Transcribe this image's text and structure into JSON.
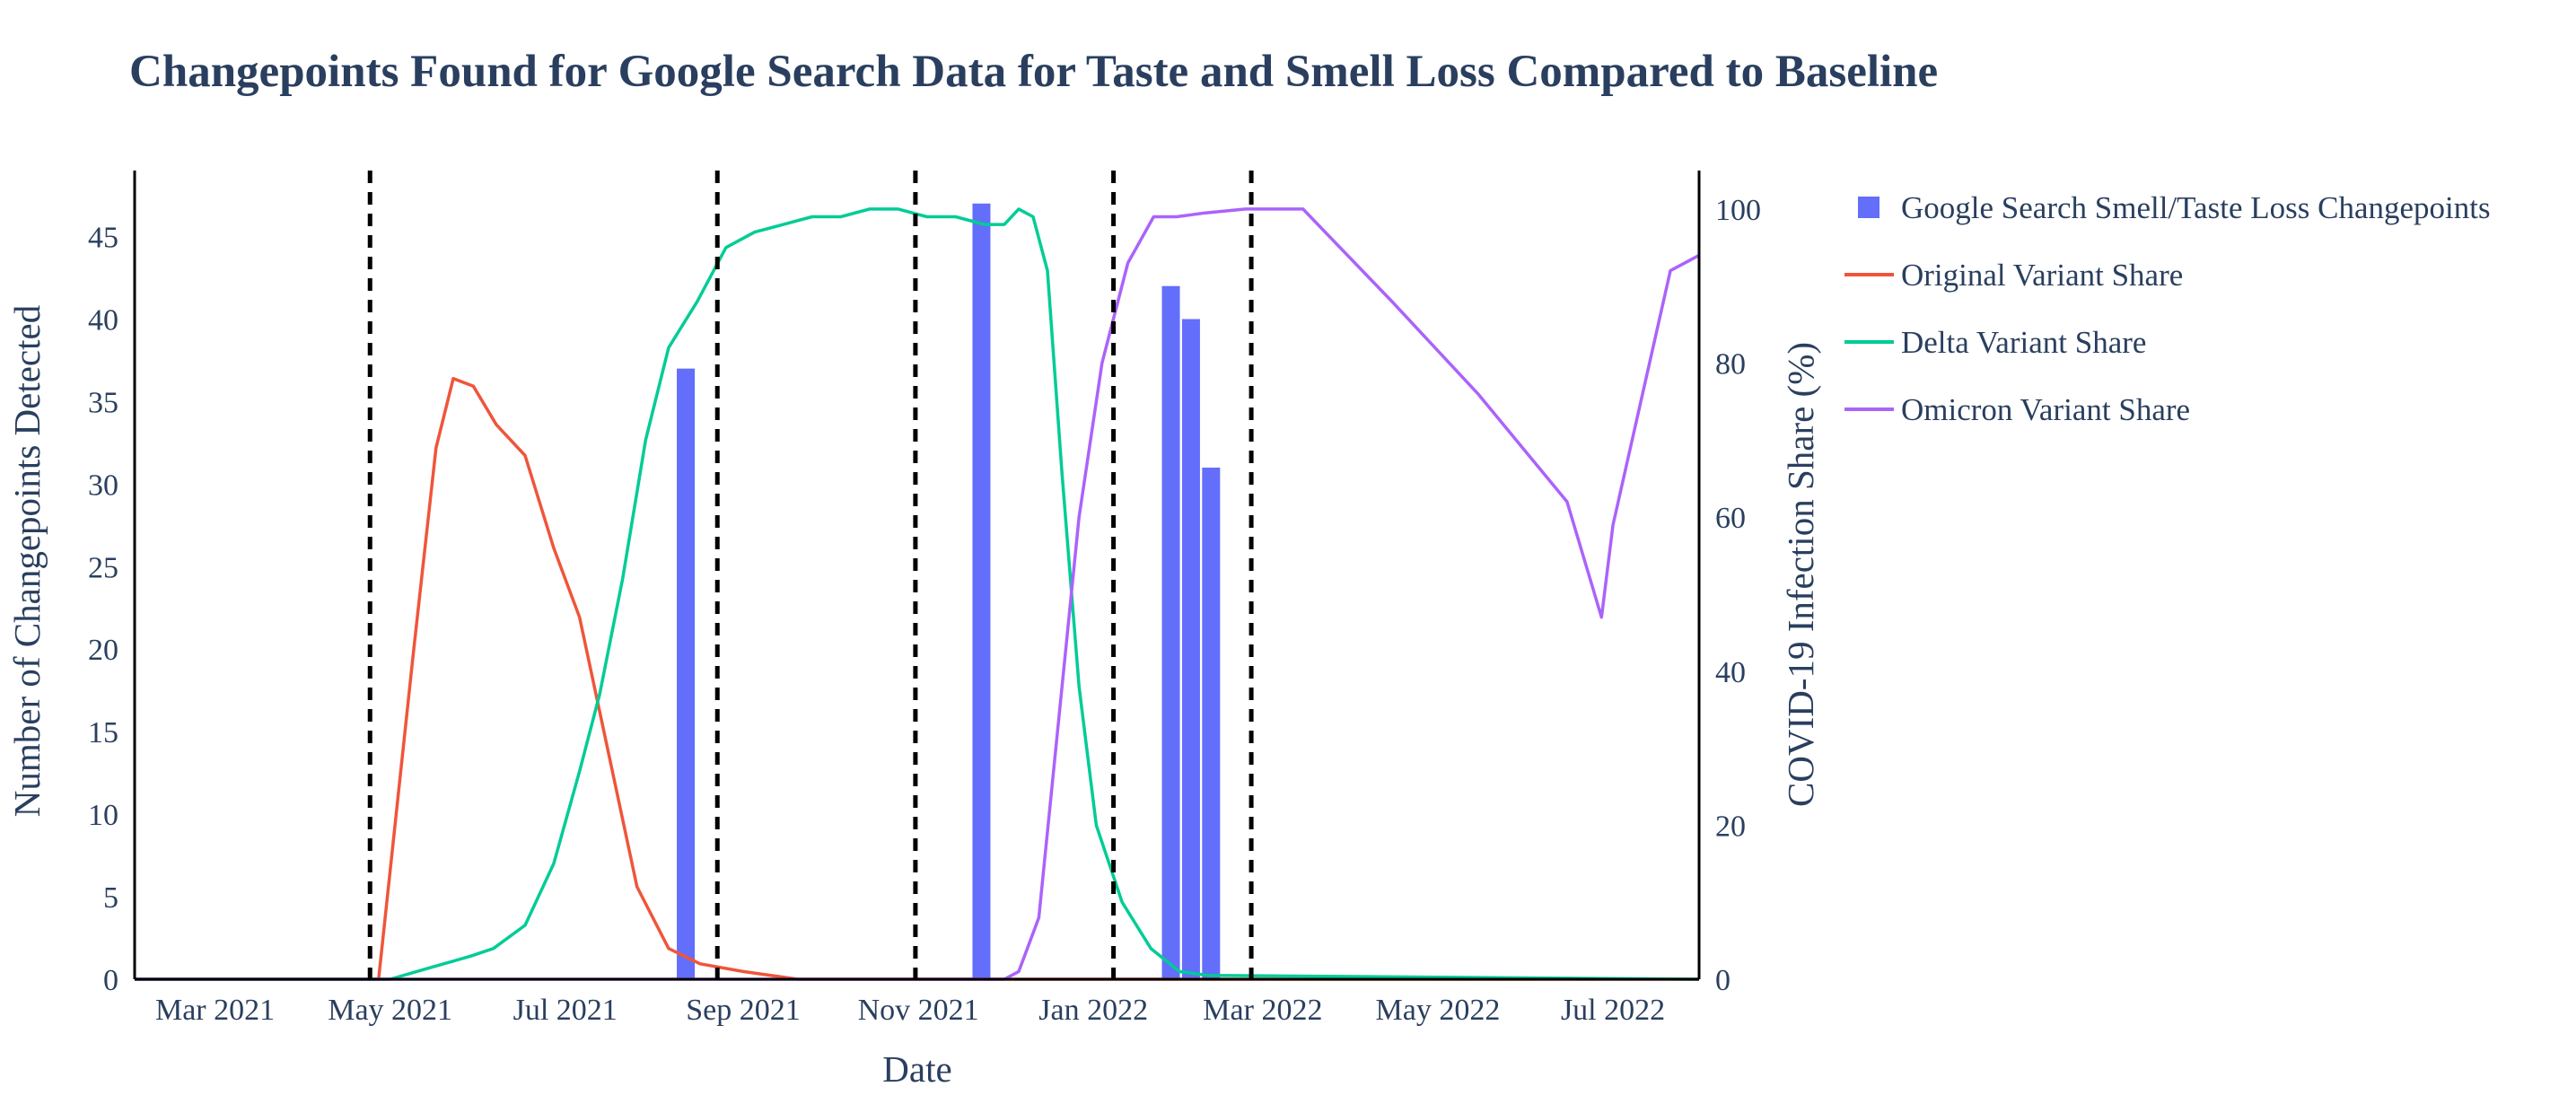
{
  "chart_data": {
    "type": "bar+line",
    "title": "Changepoints Found for Google Search Data for Taste and Smell Loss Compared to Baseline",
    "xlabel": "Date",
    "ylabel": "Number of Changepoints Detected",
    "y2label": "COVID-19 Infection Share (%)",
    "x_range": [
      "2021-02-01",
      "2022-07-31"
    ],
    "ylim": [
      0,
      49
    ],
    "y2lim": [
      0,
      105
    ],
    "x_ticks": [
      {
        "date": "2021-03-01",
        "label": "Mar 2021"
      },
      {
        "date": "2021-05-01",
        "label": "May 2021"
      },
      {
        "date": "2021-07-01",
        "label": "Jul 2021"
      },
      {
        "date": "2021-09-01",
        "label": "Sep 2021"
      },
      {
        "date": "2021-11-01",
        "label": "Nov 2021"
      },
      {
        "date": "2022-01-01",
        "label": "Jan 2022"
      },
      {
        "date": "2022-03-01",
        "label": "Mar 2022"
      },
      {
        "date": "2022-05-01",
        "label": "May 2022"
      },
      {
        "date": "2022-07-01",
        "label": "Jul 2022"
      }
    ],
    "y_ticks": [
      0,
      5,
      10,
      15,
      20,
      25,
      30,
      35,
      40,
      45
    ],
    "y2_ticks": [
      0,
      20,
      40,
      60,
      80,
      100
    ],
    "vlines": [
      "2021-04-24",
      "2021-08-23",
      "2021-10-31",
      "2022-01-08",
      "2022-02-25"
    ],
    "legend_position": "top-right",
    "bars": {
      "name": "Google Search Smell/Taste Loss Changepoints",
      "color": "#636efa",
      "points": [
        {
          "x": "2021-08-12",
          "y": 37
        },
        {
          "x": "2021-11-23",
          "y": 47
        },
        {
          "x": "2022-01-28",
          "y": 42
        },
        {
          "x": "2022-02-04",
          "y": 40
        },
        {
          "x": "2022-02-11",
          "y": 31
        }
      ]
    },
    "series": [
      {
        "name": "Original Variant Share",
        "color": "#ef553b",
        "axis": "y2",
        "points": [
          [
            "2021-02-01",
            0
          ],
          [
            "2021-04-27",
            0
          ],
          [
            "2021-05-01",
            14
          ],
          [
            "2021-05-09",
            42
          ],
          [
            "2021-05-17",
            69
          ],
          [
            "2021-05-23",
            78
          ],
          [
            "2021-05-30",
            77
          ],
          [
            "2021-06-07",
            72
          ],
          [
            "2021-06-17",
            68
          ],
          [
            "2021-06-27",
            56
          ],
          [
            "2021-07-06",
            47
          ],
          [
            "2021-07-14",
            33
          ],
          [
            "2021-07-26",
            12
          ],
          [
            "2021-08-06",
            4
          ],
          [
            "2021-08-17",
            2
          ],
          [
            "2021-09-01",
            1
          ],
          [
            "2021-09-20",
            0
          ],
          [
            "2022-07-31",
            0
          ]
        ]
      },
      {
        "name": "Delta Variant Share",
        "color": "#00cc96",
        "axis": "y2",
        "points": [
          [
            "2021-02-01",
            0
          ],
          [
            "2021-05-01",
            0
          ],
          [
            "2021-05-15",
            1.5
          ],
          [
            "2021-05-29",
            3
          ],
          [
            "2021-06-06",
            4
          ],
          [
            "2021-06-17",
            7
          ],
          [
            "2021-06-27",
            15
          ],
          [
            "2021-07-06",
            27
          ],
          [
            "2021-07-13",
            37
          ],
          [
            "2021-07-21",
            52
          ],
          [
            "2021-07-29",
            70
          ],
          [
            "2021-08-06",
            82
          ],
          [
            "2021-08-16",
            88
          ],
          [
            "2021-08-26",
            95
          ],
          [
            "2021-09-05",
            97
          ],
          [
            "2021-09-15",
            98
          ],
          [
            "2021-09-25",
            99
          ],
          [
            "2021-10-05",
            99
          ],
          [
            "2021-10-15",
            100
          ],
          [
            "2021-10-25",
            100
          ],
          [
            "2021-11-04",
            99
          ],
          [
            "2021-11-14",
            99
          ],
          [
            "2021-11-24",
            98
          ],
          [
            "2021-12-01",
            98
          ],
          [
            "2021-12-06",
            100
          ],
          [
            "2021-12-11",
            99
          ],
          [
            "2021-12-16",
            92
          ],
          [
            "2021-12-21",
            66
          ],
          [
            "2021-12-27",
            38
          ],
          [
            "2022-01-02",
            20
          ],
          [
            "2022-01-11",
            10
          ],
          [
            "2022-01-21",
            4
          ],
          [
            "2022-01-31",
            1
          ],
          [
            "2022-02-10",
            0.5
          ],
          [
            "2022-07-31",
            0
          ]
        ]
      },
      {
        "name": "Omicron Variant Share",
        "color": "#ab63fa",
        "axis": "y2",
        "points": [
          [
            "2021-02-01",
            0
          ],
          [
            "2021-12-01",
            0
          ],
          [
            "2021-12-06",
            1
          ],
          [
            "2021-12-13",
            8
          ],
          [
            "2021-12-20",
            34
          ],
          [
            "2021-12-27",
            60
          ],
          [
            "2022-01-04",
            80
          ],
          [
            "2022-01-13",
            93
          ],
          [
            "2022-01-22",
            99
          ],
          [
            "2022-01-30",
            99
          ],
          [
            "2022-02-09",
            99.5
          ],
          [
            "2022-02-23",
            100
          ],
          [
            "2022-03-15",
            100
          ],
          [
            "2022-04-15",
            88
          ],
          [
            "2022-05-15",
            76
          ],
          [
            "2022-06-15",
            62
          ],
          [
            "2022-06-27",
            47
          ],
          [
            "2022-07-01",
            59
          ],
          [
            "2022-07-21",
            92
          ],
          [
            "2022-07-31",
            94
          ]
        ]
      }
    ]
  }
}
